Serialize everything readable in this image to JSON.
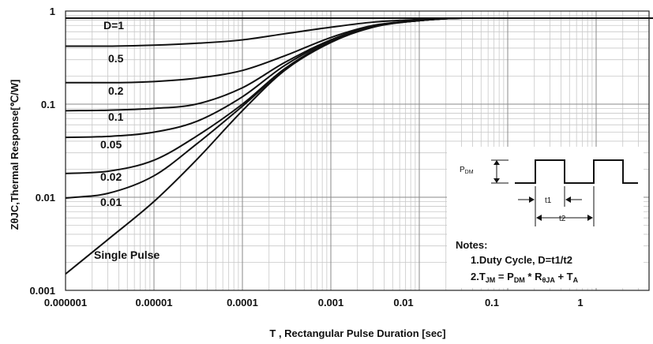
{
  "chart_data": {
    "type": "line",
    "xlabel": "T , Rectangular Pulse Duration [sec]",
    "ylabel": "ZθJC,Thermal Response[℃/W]",
    "xscale": "log",
    "yscale": "log",
    "xlim": [
      1e-06,
      8
    ],
    "ylim": [
      0.001,
      1
    ],
    "grid": true,
    "x_tick_labels": [
      "0.000001",
      "0.00001",
      "0.0001",
      "0.001",
      "0.01",
      "0.1",
      "1"
    ],
    "y_tick_labels": [
      "1",
      "0.1",
      "0.01",
      "0.001"
    ],
    "x": [
      1e-06,
      3e-06,
      1e-05,
      3e-05,
      0.0001,
      0.0003,
      0.001,
      0.003,
      0.01,
      0.03,
      0.1,
      1,
      8
    ],
    "series": [
      {
        "name": "D=1",
        "values": [
          0.84,
          0.84,
          0.84,
          0.84,
          0.84,
          0.84,
          0.84,
          0.84,
          0.84,
          0.84,
          0.84,
          0.84,
          0.84
        ]
      },
      {
        "name": "0.5",
        "values": [
          0.42,
          0.42,
          0.43,
          0.45,
          0.49,
          0.57,
          0.67,
          0.76,
          0.81,
          0.84,
          0.84,
          0.84,
          0.84
        ]
      },
      {
        "name": "0.2",
        "values": [
          0.17,
          0.17,
          0.175,
          0.19,
          0.23,
          0.33,
          0.52,
          0.7,
          0.79,
          0.84,
          0.84,
          0.84,
          0.84
        ]
      },
      {
        "name": "0.1",
        "values": [
          0.085,
          0.086,
          0.09,
          0.1,
          0.15,
          0.28,
          0.49,
          0.69,
          0.79,
          0.84,
          0.84,
          0.84,
          0.84
        ]
      },
      {
        "name": "0.05",
        "values": [
          0.044,
          0.045,
          0.05,
          0.065,
          0.12,
          0.26,
          0.48,
          0.68,
          0.79,
          0.84,
          0.84,
          0.84,
          0.84
        ]
      },
      {
        "name": "0.02",
        "values": [
          0.018,
          0.019,
          0.025,
          0.045,
          0.1,
          0.24,
          0.47,
          0.68,
          0.79,
          0.84,
          0.84,
          0.84,
          0.84
        ]
      },
      {
        "name": "0.01",
        "values": [
          0.0098,
          0.011,
          0.017,
          0.037,
          0.095,
          0.235,
          0.47,
          0.68,
          0.79,
          0.84,
          0.84,
          0.84,
          0.84
        ]
      },
      {
        "name": "Single Pulse",
        "values": [
          0.0015,
          0.0035,
          0.009,
          0.025,
          0.085,
          0.23,
          0.46,
          0.67,
          0.79,
          0.84,
          0.84,
          0.84,
          0.84
        ]
      }
    ],
    "inset": {
      "pdm_label": "P",
      "pdm_sub": "DM",
      "t1_label": "t1",
      "t2_label": "t2",
      "notes_title": "Notes:",
      "note1": "1.Duty  Cycle, D=t1/t2",
      "note2_parts": [
        {
          "text": "2.T",
          "sub": false
        },
        {
          "text": "JM",
          "sub": true
        },
        {
          "text": " = P",
          "sub": false
        },
        {
          "text": "DM",
          "sub": true
        },
        {
          "text": " * R",
          "sub": false
        },
        {
          "text": "θJA",
          "sub": true
        },
        {
          "text": " + T",
          "sub": false
        },
        {
          "text": "A",
          "sub": true
        }
      ]
    }
  }
}
